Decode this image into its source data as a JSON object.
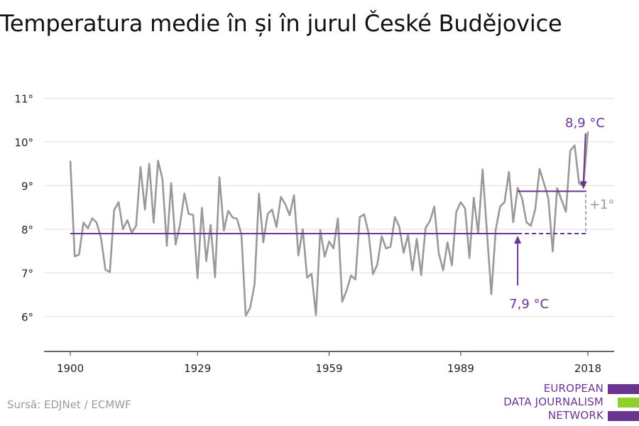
{
  "chart_data": {
    "type": "line",
    "title": "Temperatura medie în și în jurul České Budějovice",
    "x_ticks": [
      1900,
      1929,
      1959,
      1989,
      2018
    ],
    "y_ticks": [
      {
        "value": 6,
        "label": "6°"
      },
      {
        "value": 7,
        "label": "7°"
      },
      {
        "value": 8,
        "label": "8°"
      },
      {
        "value": 9,
        "label": "9°"
      },
      {
        "value": 10,
        "label": "10°"
      },
      {
        "value": 11,
        "label": "11°"
      }
    ],
    "xlim": [
      1894,
      2024
    ],
    "ylim": [
      5.2,
      11.3
    ],
    "grid": "horizontal",
    "x": [
      1900,
      1901,
      1902,
      1903,
      1904,
      1905,
      1906,
      1907,
      1908,
      1909,
      1910,
      1911,
      1912,
      1913,
      1914,
      1915,
      1916,
      1917,
      1918,
      1919,
      1920,
      1921,
      1922,
      1923,
      1924,
      1925,
      1926,
      1927,
      1928,
      1929,
      1930,
      1931,
      1932,
      1933,
      1934,
      1935,
      1936,
      1937,
      1938,
      1939,
      1940,
      1941,
      1942,
      1943,
      1944,
      1945,
      1946,
      1947,
      1948,
      1949,
      1950,
      1951,
      1952,
      1953,
      1954,
      1955,
      1956,
      1957,
      1958,
      1959,
      1960,
      1961,
      1962,
      1963,
      1964,
      1965,
      1966,
      1967,
      1968,
      1969,
      1970,
      1971,
      1972,
      1973,
      1974,
      1975,
      1976,
      1977,
      1978,
      1979,
      1980,
      1981,
      1982,
      1983,
      1984,
      1985,
      1986,
      1987,
      1988,
      1989,
      1990,
      1991,
      1992,
      1993,
      1994,
      1995,
      1996,
      1997,
      1998,
      1999,
      2000,
      2001,
      2002,
      2003,
      2004,
      2005,
      2006,
      2007,
      2008,
      2009,
      2010,
      2011,
      2012,
      2013,
      2014,
      2015,
      2016,
      2017,
      2018
    ],
    "series": [
      {
        "color": "#999999",
        "values": [
          9.55,
          7.38,
          7.42,
          8.15,
          8.02,
          8.25,
          8.15,
          7.8,
          7.07,
          7.02,
          8.44,
          8.62,
          8.0,
          8.21,
          7.92,
          8.08,
          9.43,
          8.45,
          9.5,
          8.15,
          9.57,
          9.15,
          7.62,
          9.06,
          7.65,
          8.1,
          8.82,
          8.35,
          8.33,
          6.88,
          8.49,
          7.27,
          8.1,
          6.9,
          9.19,
          7.97,
          8.42,
          8.27,
          8.24,
          7.88,
          6.02,
          6.2,
          6.73,
          8.82,
          7.7,
          8.35,
          8.45,
          8.05,
          8.74,
          8.58,
          8.32,
          8.78,
          7.4,
          8.0,
          6.89,
          6.98,
          6.03,
          7.98,
          7.37,
          7.72,
          7.56,
          8.25,
          6.34,
          6.6,
          6.94,
          6.85,
          8.28,
          8.34,
          7.91,
          6.97,
          7.19,
          7.84,
          7.56,
          7.6,
          8.28,
          8.06,
          7.46,
          7.87,
          7.06,
          7.78,
          6.95,
          8.03,
          8.19,
          8.52,
          7.46,
          7.06,
          7.7,
          7.17,
          8.39,
          8.62,
          8.48,
          7.34,
          8.72,
          7.9,
          9.37,
          7.92,
          6.51,
          7.99,
          8.52,
          8.62,
          9.31,
          8.16,
          8.95,
          8.71,
          8.16,
          8.08,
          8.45,
          9.38,
          9.05,
          8.71,
          7.49,
          8.94,
          8.67,
          8.4,
          9.8,
          9.92,
          9.05,
          9.0,
          10.22
        ]
      }
    ],
    "colors": {
      "line": "#999999",
      "accent": "#6c3491",
      "grid": "#dddddd",
      "axis": "#333333"
    },
    "annotations": {
      "baseline": {
        "value": 7.9,
        "x_start": 1900,
        "x_end": 2018,
        "label": "7,9 °C",
        "arrow_x": 2002
      },
      "recent": {
        "value": 8.87,
        "x_start": 2002,
        "x_end": 2018,
        "label": "8,9 °C",
        "arrow_x": 2017
      },
      "diff_label": "+1°"
    }
  },
  "source": "Sursă: EDJNet / ECMWF",
  "logo": {
    "lines": [
      "EUROPEAN",
      "DATA JOURNALISM",
      "NETWORK"
    ],
    "bar_colors": [
      "#6c3491",
      "#8fd12a",
      "#6c3491"
    ]
  }
}
